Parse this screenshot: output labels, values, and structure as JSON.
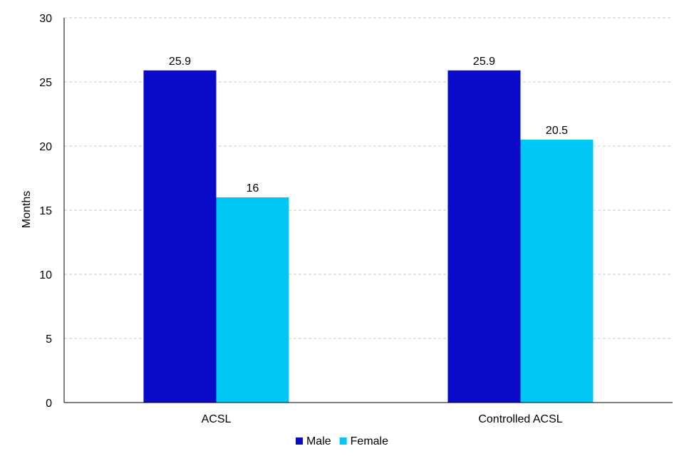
{
  "chart_data": {
    "type": "bar",
    "title": "",
    "xlabel": "",
    "ylabel": "Months",
    "ylim": [
      0,
      30
    ],
    "yticks": [
      0,
      5,
      10,
      15,
      20,
      25,
      30
    ],
    "grid": true,
    "legend_position": "bottom",
    "categories": [
      "ACSL",
      "Controlled ACSL"
    ],
    "series": [
      {
        "name": "Male",
        "values": [
          25.9,
          25.9
        ],
        "labels": [
          "25.9",
          "25.9"
        ],
        "color": "#0a0ac8"
      },
      {
        "name": "Female",
        "values": [
          16,
          20.5
        ],
        "labels": [
          "16",
          "20.5"
        ],
        "color": "#00c8f5"
      }
    ]
  }
}
